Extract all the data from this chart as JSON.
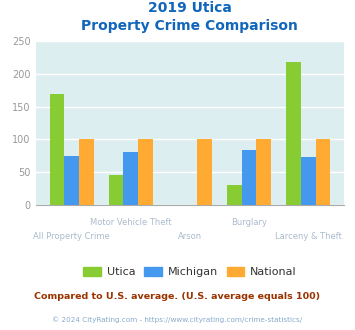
{
  "title_line1": "2019 Utica",
  "title_line2": "Property Crime Comparison",
  "categories_top": [
    "Motor Vehicle Theft",
    "Burglary"
  ],
  "categories_bottom": [
    "All Property Crime",
    "Arson",
    "Larceny & Theft"
  ],
  "groups": [
    "All Property Crime",
    "Motor Vehicle Theft",
    "Arson",
    "Burglary",
    "Larceny & Theft"
  ],
  "utica": [
    170,
    45,
    0,
    30,
    218
  ],
  "michigan": [
    75,
    80,
    0,
    83,
    73
  ],
  "national": [
    100,
    100,
    100,
    100,
    100
  ],
  "utica_color": "#88cc33",
  "michigan_color": "#4499ee",
  "national_color": "#ffaa33",
  "bg_color": "#ddeef0",
  "ylim": [
    0,
    250
  ],
  "yticks": [
    0,
    50,
    100,
    150,
    200,
    250
  ],
  "subtitle_note": "Compared to U.S. average. (U.S. average equals 100)",
  "footer": "© 2024 CityRating.com - https://www.cityrating.com/crime-statistics/",
  "title_color": "#1166bb",
  "note_color": "#993300",
  "footer_color": "#88aacc",
  "label_color": "#aabbcc"
}
